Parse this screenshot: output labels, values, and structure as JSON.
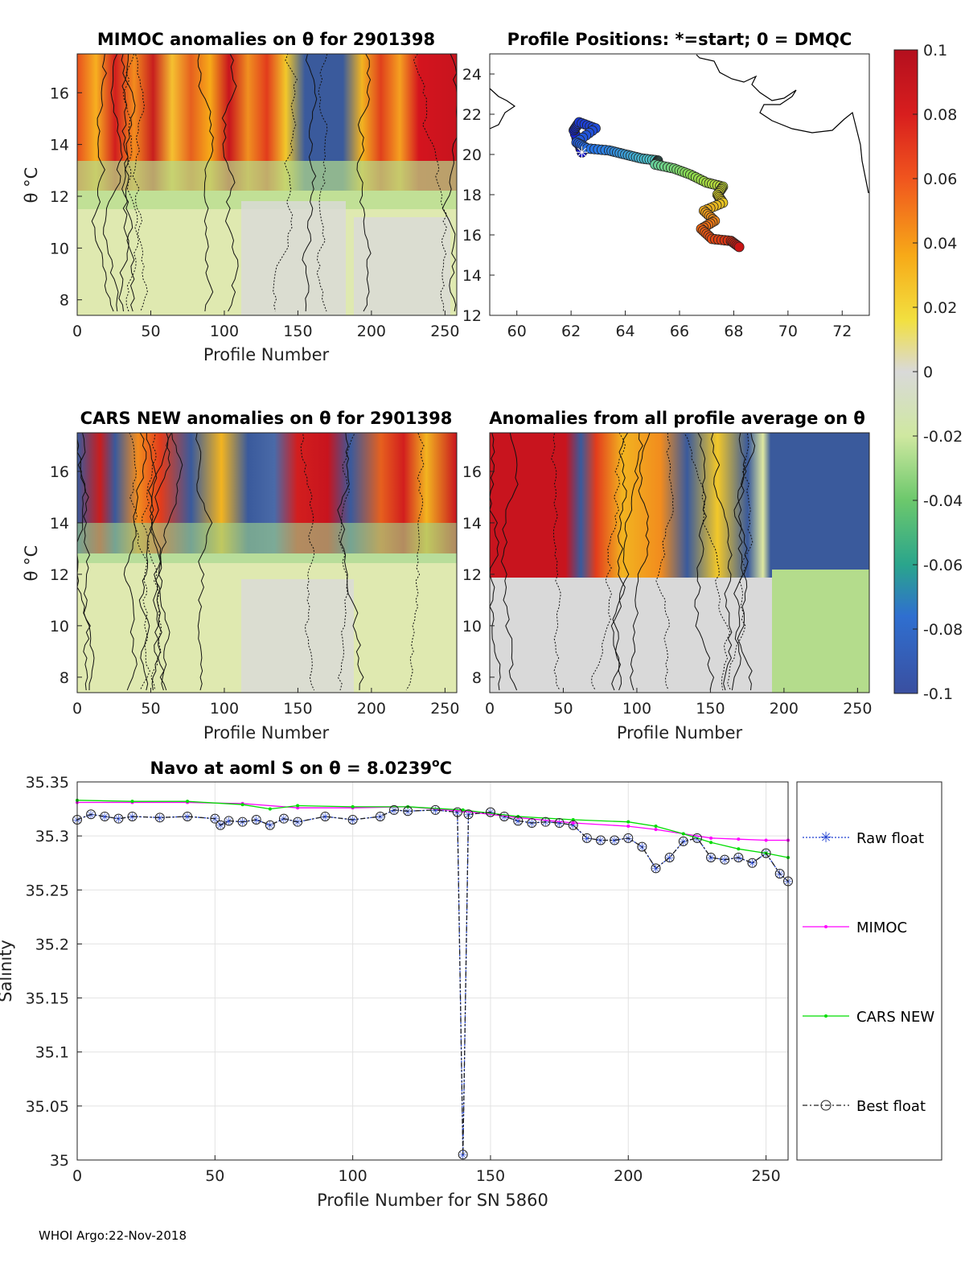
{
  "chart_data": [
    {
      "type": "heatmap",
      "id": "mimoc",
      "title": "MIMOC anomalies on θ  for 2901398",
      "xlabel": "Profile Number",
      "ylabel": "θ °C",
      "xlim": [
        0,
        258
      ],
      "ylim": [
        7.4,
        17.5
      ],
      "xticks": [
        0,
        50,
        100,
        150,
        200,
        250
      ],
      "yticks": [
        8,
        10,
        12,
        14,
        16
      ]
    },
    {
      "type": "scatter",
      "id": "positions",
      "title": "Profile Positions: *=start; 0 = DMQC",
      "xlabel": "",
      "ylabel": "",
      "xlim": [
        59,
        73
      ],
      "ylim": [
        12,
        25
      ],
      "xticks": [
        60,
        62,
        64,
        66,
        68,
        70,
        72
      ],
      "yticks": [
        12,
        14,
        16,
        18,
        20,
        22,
        24
      ],
      "track_lon": [
        62.4,
        62.1,
        62.3,
        62.9,
        62.2,
        62.6,
        63.4,
        64.0,
        64.6,
        65.2,
        65.1,
        65.8,
        66.4,
        67.0,
        67.6,
        67.4,
        67.6,
        66.9,
        67.3,
        66.8,
        67.2,
        67.9,
        68.2
      ],
      "track_lat": [
        20.1,
        21.2,
        21.6,
        21.3,
        20.6,
        20.3,
        20.2,
        20.0,
        19.8,
        19.7,
        19.5,
        19.3,
        19.0,
        18.6,
        18.4,
        18.0,
        17.6,
        17.2,
        16.7,
        16.3,
        15.8,
        15.7,
        15.4
      ]
    },
    {
      "type": "heatmap",
      "id": "cars",
      "title": "CARS NEW anomalies on θ for 2901398",
      "xlabel": "Profile Number",
      "ylabel": "θ °C",
      "xlim": [
        0,
        258
      ],
      "ylim": [
        7.4,
        17.5
      ],
      "xticks": [
        0,
        50,
        100,
        150,
        200,
        250
      ],
      "yticks": [
        8,
        10,
        12,
        14,
        16
      ]
    },
    {
      "type": "heatmap",
      "id": "allavg",
      "title": "Anomalies from all profile average on θ",
      "xlabel": "Profile Number",
      "ylabel": "",
      "xlim": [
        0,
        258
      ],
      "ylim": [
        7.4,
        17.5
      ],
      "xticks": [
        0,
        50,
        100,
        150,
        200,
        250
      ],
      "yticks": [
        8,
        10,
        12,
        14,
        16
      ]
    },
    {
      "type": "line",
      "id": "salinity",
      "title": "Navo at aoml S on θ = 8.0239",
      "title_suffix": "C",
      "xlabel": "Profile Number for SN 5860",
      "ylabel": "Salinity",
      "xlim": [
        0,
        258
      ],
      "ylim": [
        35.0,
        35.35
      ],
      "xticks": [
        0,
        50,
        100,
        150,
        200,
        250
      ],
      "yticks": [
        35,
        35.05,
        35.1,
        35.15,
        35.2,
        35.25,
        35.3,
        35.35
      ],
      "ytick_labels": [
        "35",
        "35.05",
        "35.1",
        "35.15",
        "35.2",
        "35.25",
        "35.3",
        "35.35"
      ],
      "series": [
        {
          "name": "Raw float",
          "color": "#1f3fd0",
          "x": [
            0,
            5,
            10,
            15,
            20,
            30,
            40,
            50,
            52,
            55,
            60,
            65,
            70,
            75,
            80,
            90,
            100,
            110,
            115,
            120,
            130,
            138,
            140,
            142,
            150,
            155,
            160,
            165,
            170,
            175,
            180,
            185,
            190,
            195,
            200,
            205,
            210,
            215,
            220,
            225,
            230,
            235,
            240,
            245,
            250,
            255,
            258
          ],
          "y": [
            35.315,
            35.32,
            35.318,
            35.316,
            35.318,
            35.317,
            35.318,
            35.316,
            35.31,
            35.314,
            35.313,
            35.315,
            35.31,
            35.316,
            35.313,
            35.318,
            35.315,
            35.318,
            35.324,
            35.323,
            35.324,
            35.322,
            35.005,
            35.32,
            35.322,
            35.318,
            35.314,
            35.312,
            35.313,
            35.312,
            35.31,
            35.298,
            35.296,
            35.296,
            35.298,
            35.29,
            35.27,
            35.28,
            35.295,
            35.298,
            35.28,
            35.278,
            35.28,
            35.275,
            35.284,
            35.265,
            35.258
          ]
        },
        {
          "name": "MIMOC",
          "color": "#ff00ff",
          "x": [
            0,
            20,
            40,
            60,
            80,
            100,
            120,
            140,
            160,
            180,
            200,
            210,
            220,
            230,
            240,
            250,
            258
          ],
          "y": [
            35.331,
            35.331,
            35.331,
            35.33,
            35.326,
            35.326,
            35.327,
            35.323,
            35.317,
            35.312,
            35.309,
            35.306,
            35.302,
            35.298,
            35.297,
            35.296,
            35.296
          ]
        },
        {
          "name": "CARS NEW",
          "color": "#00dd00",
          "x": [
            0,
            20,
            40,
            60,
            70,
            80,
            100,
            120,
            140,
            160,
            180,
            200,
            210,
            220,
            230,
            240,
            250,
            258
          ],
          "y": [
            35.333,
            35.332,
            35.332,
            35.329,
            35.325,
            35.328,
            35.327,
            35.327,
            35.324,
            35.318,
            35.315,
            35.313,
            35.309,
            35.302,
            35.294,
            35.288,
            35.284,
            35.28
          ]
        },
        {
          "name": "Best float",
          "color": "#222222",
          "x": [
            0,
            5,
            10,
            15,
            20,
            30,
            40,
            50,
            52,
            55,
            60,
            65,
            70,
            75,
            80,
            90,
            100,
            110,
            115,
            120,
            130,
            138,
            140,
            142,
            150,
            155,
            160,
            165,
            170,
            175,
            180,
            185,
            190,
            195,
            200,
            205,
            210,
            215,
            220,
            225,
            230,
            235,
            240,
            245,
            250,
            255,
            258
          ],
          "y": [
            35.315,
            35.32,
            35.318,
            35.316,
            35.318,
            35.317,
            35.318,
            35.316,
            35.31,
            35.314,
            35.313,
            35.315,
            35.31,
            35.316,
            35.313,
            35.318,
            35.315,
            35.318,
            35.324,
            35.323,
            35.324,
            35.322,
            35.005,
            35.32,
            35.322,
            35.318,
            35.314,
            35.312,
            35.313,
            35.312,
            35.31,
            35.298,
            35.296,
            35.296,
            35.298,
            35.29,
            35.27,
            35.28,
            35.295,
            35.298,
            35.28,
            35.278,
            35.28,
            35.275,
            35.284,
            35.265,
            35.258
          ]
        }
      ]
    }
  ],
  "colorbar": {
    "tick_labels": [
      "0.1",
      "0.08",
      "0.06",
      "0.04",
      "0.02",
      "0",
      "-0.02",
      "-0.04",
      "-0.06",
      "-0.08",
      "-0.1"
    ],
    "range": [
      -0.1,
      0.1
    ]
  },
  "legend": {
    "raw": "Raw float",
    "mimoc": "MIMOC",
    "cars": "CARS NEW",
    "best": "Best float"
  },
  "footer": "WHOI Argo:22-Nov-2018"
}
